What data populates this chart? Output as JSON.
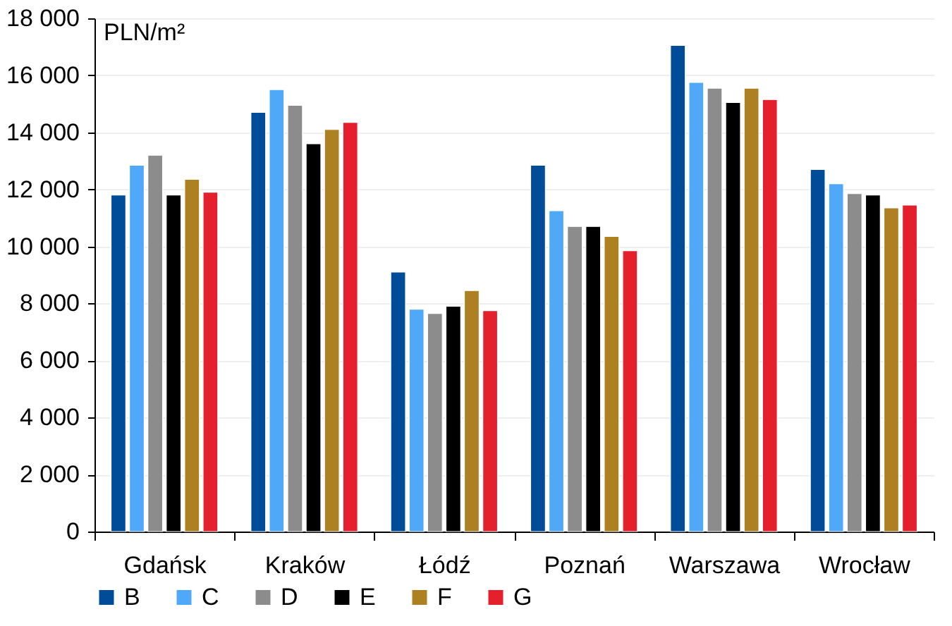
{
  "chart_data": {
    "type": "bar",
    "ylabel": "PLN/m²",
    "categories": [
      "Gdańsk",
      "Kraków",
      "Łódź",
      "Poznań",
      "Warszawa",
      "Wrocław"
    ],
    "series": [
      {
        "name": "B",
        "color": "#004c99",
        "values": [
          11800,
          14700,
          9100,
          12850,
          17050,
          12700
        ]
      },
      {
        "name": "C",
        "color": "#4fa8f8",
        "values": [
          12850,
          15500,
          7800,
          11250,
          15750,
          12200
        ]
      },
      {
        "name": "D",
        "color": "#8c8c8c",
        "values": [
          13200,
          14950,
          7650,
          10700,
          15550,
          11850
        ]
      },
      {
        "name": "E",
        "color": "#000000",
        "values": [
          11800,
          13600,
          7900,
          10700,
          15050,
          11800
        ]
      },
      {
        "name": "F",
        "color": "#ad8122",
        "values": [
          12350,
          14100,
          8450,
          10350,
          15550,
          11350
        ]
      },
      {
        "name": "G",
        "color": "#e3202c",
        "values": [
          11900,
          14350,
          7750,
          9850,
          15150,
          11450
        ]
      }
    ],
    "ylim": [
      0,
      18000
    ],
    "yticks": [
      {
        "value": 0,
        "label": "0"
      },
      {
        "value": 2000,
        "label": "2 000"
      },
      {
        "value": 4000,
        "label": "4 000"
      },
      {
        "value": 6000,
        "label": "6 000"
      },
      {
        "value": 8000,
        "label": "8 000"
      },
      {
        "value": 10000,
        "label": "10 000"
      },
      {
        "value": 12000,
        "label": "12 000"
      },
      {
        "value": 14000,
        "label": "14 000"
      },
      {
        "value": 16000,
        "label": "16 000"
      },
      {
        "value": 18000,
        "label": "18 000"
      }
    ],
    "grid": "y",
    "legend": "bottom"
  }
}
